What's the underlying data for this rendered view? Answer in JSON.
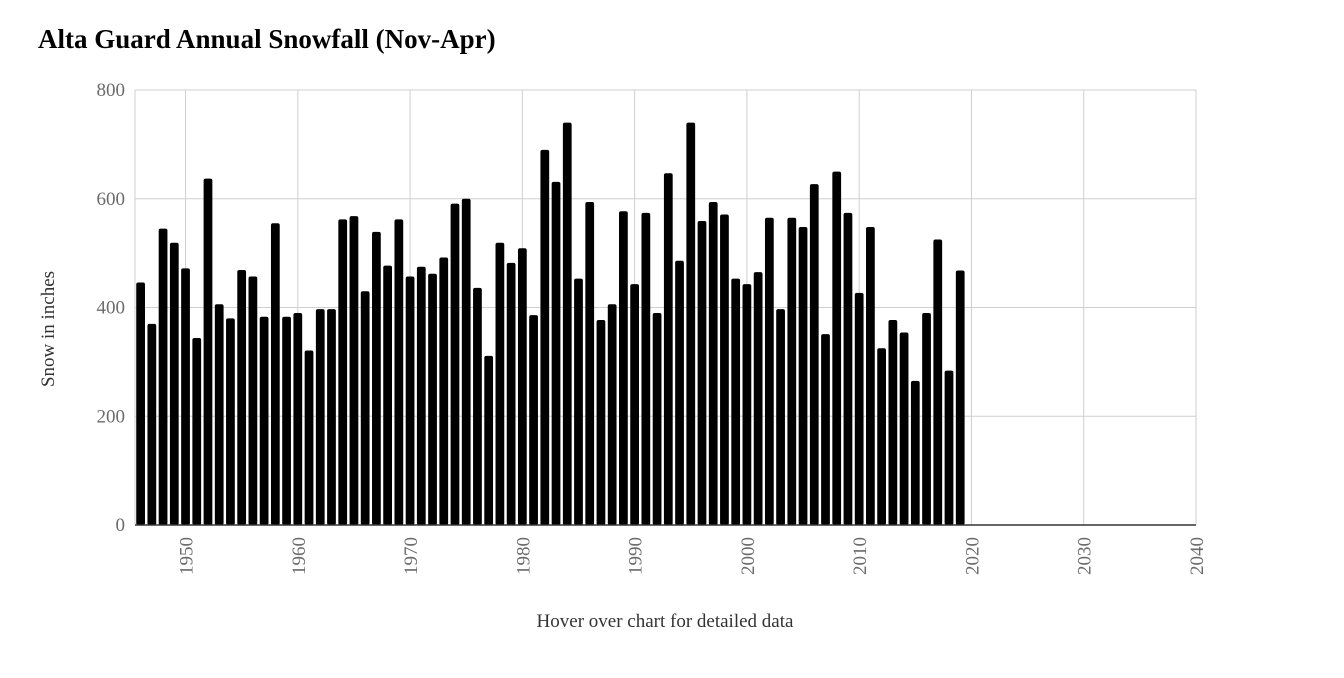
{
  "chart_data": {
    "type": "bar",
    "title": "Alta Guard Annual Snowfall (Nov-Apr)",
    "xlabel": "",
    "ylabel": "Snow in inches",
    "xlim": [
      1945.5,
      2040
    ],
    "ylim": [
      0,
      800
    ],
    "yticks": [
      0,
      200,
      400,
      600,
      800
    ],
    "xticks": [
      1950,
      1960,
      1970,
      1980,
      1990,
      2000,
      2010,
      2020,
      2030,
      2040
    ],
    "grid": true,
    "legend": "none",
    "bar_color": "#000000",
    "x": [
      1946,
      1947,
      1948,
      1949,
      1950,
      1951,
      1952,
      1953,
      1954,
      1955,
      1956,
      1957,
      1958,
      1959,
      1960,
      1961,
      1962,
      1963,
      1964,
      1965,
      1966,
      1967,
      1968,
      1969,
      1970,
      1971,
      1972,
      1973,
      1974,
      1975,
      1976,
      1977,
      1978,
      1979,
      1980,
      1981,
      1982,
      1983,
      1984,
      1985,
      1986,
      1987,
      1988,
      1989,
      1990,
      1991,
      1992,
      1993,
      1994,
      1995,
      1996,
      1997,
      1998,
      1999,
      2000,
      2001,
      2002,
      2003,
      2004,
      2005,
      2006,
      2007,
      2008,
      2009,
      2010,
      2011,
      2012,
      2013,
      2014,
      2015,
      2016,
      2017,
      2018,
      2019
    ],
    "values": [
      446,
      370,
      545,
      519,
      472,
      344,
      637,
      406,
      380,
      469,
      457,
      383,
      555,
      383,
      390,
      321,
      397,
      397,
      562,
      568,
      430,
      539,
      477,
      562,
      457,
      475,
      462,
      492,
      591,
      600,
      436,
      311,
      519,
      482,
      509,
      386,
      690,
      631,
      740,
      453,
      594,
      377,
      406,
      577,
      443,
      574,
      390,
      647,
      486,
      740,
      559,
      594,
      571,
      453,
      443,
      465,
      565,
      397,
      565,
      548,
      627,
      351,
      650,
      574,
      427,
      548,
      325,
      377,
      354,
      265,
      390,
      525,
      284,
      468
    ]
  },
  "hint": "Hover over chart for detailed data"
}
